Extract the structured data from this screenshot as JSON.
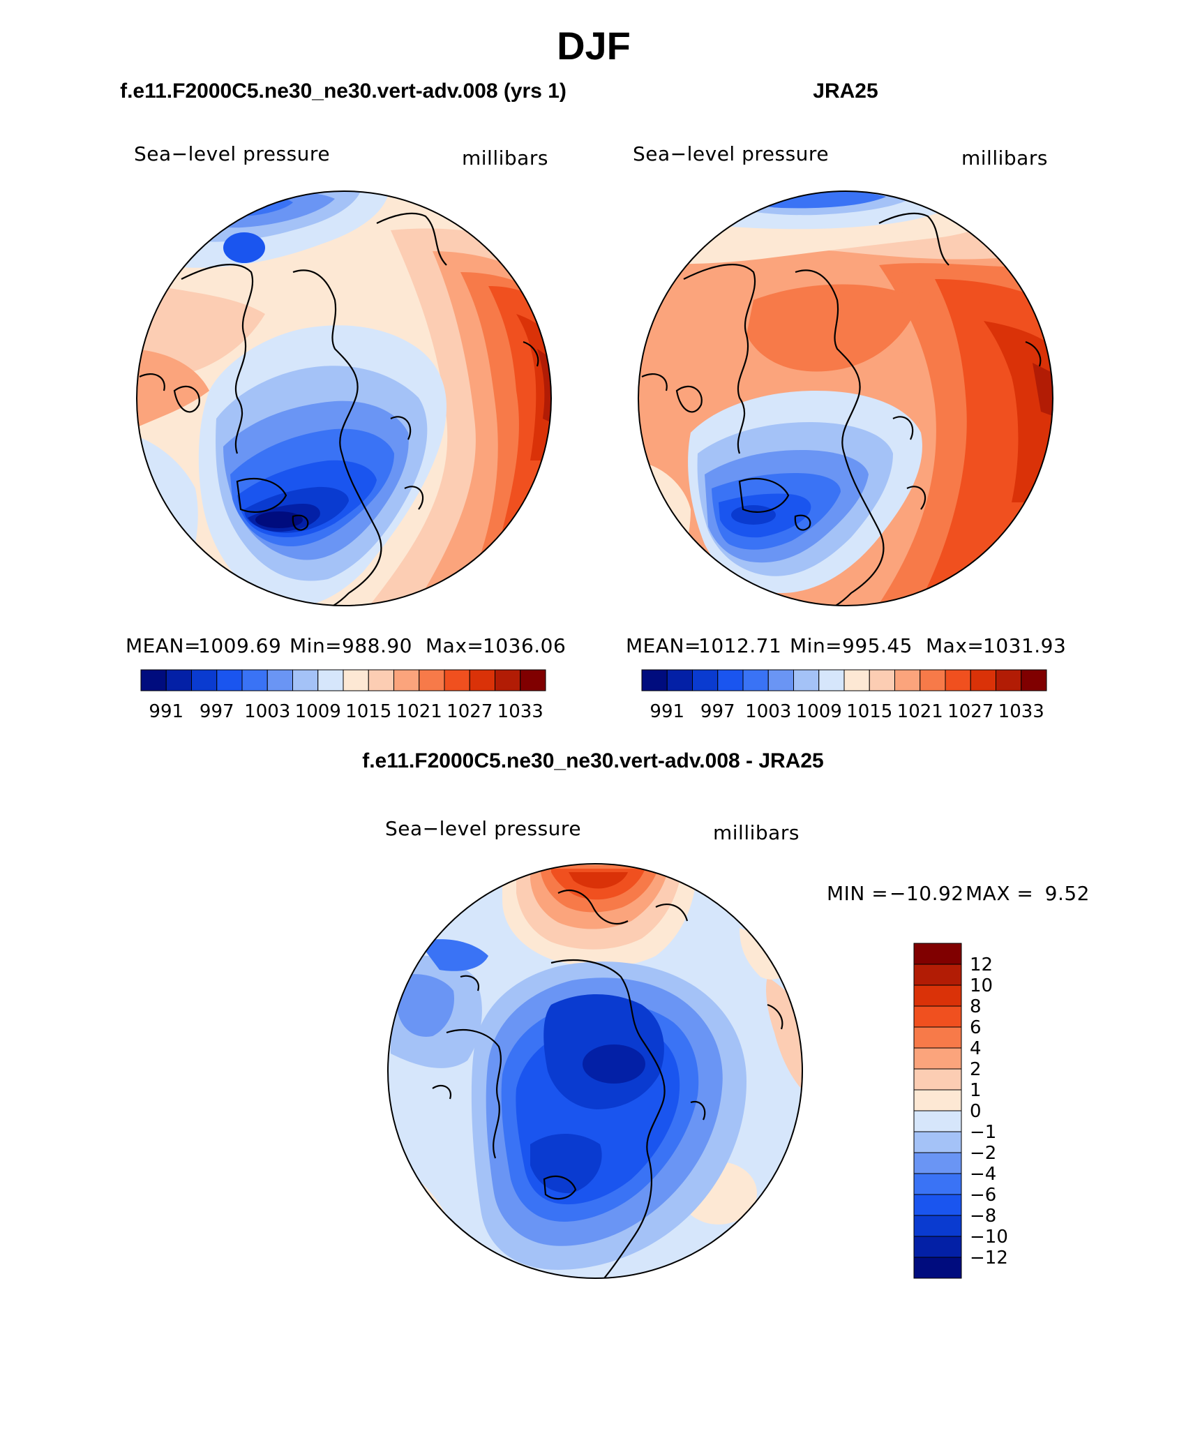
{
  "page": {
    "title": "DJF",
    "subtitle_left": "f.e11.F2000C5.ne30_ne30.vert-adv.008 (yrs 1)",
    "subtitle_right": "JRA25",
    "subtitle_diff": "f.e11.F2000C5.ne30_ne30.vert-adv.008 - JRA25"
  },
  "chart_data": [
    {
      "type": "heatmap",
      "projection": "north-polar-stereographic",
      "dataset": "model",
      "left_label": "Sea−level pressure",
      "right_label": "millibars",
      "stats": {
        "mean_label": "MEAN=",
        "mean": "1009.69",
        "min_label": "Min=",
        "min": "988.90",
        "max_label": "Max=",
        "max": "1036.06"
      },
      "colorbar_tick_labels": [
        "991",
        "997",
        "1003",
        "1009",
        "1015",
        "1021",
        "1027",
        "1033"
      ],
      "colorbar_levels": [
        991,
        994,
        997,
        1000,
        1003,
        1006,
        1009,
        1012,
        1015,
        1018,
        1021,
        1024,
        1027,
        1030,
        1033
      ],
      "colors": [
        "#000c7e",
        "#0320a6",
        "#0a3bd0",
        "#1a55ef",
        "#3a73f5",
        "#6a95f4",
        "#a4c2f7",
        "#d6e6fb",
        "#fde8d4",
        "#fccdb3",
        "#fba47c",
        "#f77a49",
        "#f0501f",
        "#da3208",
        "#b21c05",
        "#800000"
      ]
    },
    {
      "type": "heatmap",
      "projection": "north-polar-stereographic",
      "dataset": "JRA25",
      "left_label": "Sea−level pressure",
      "right_label": "millibars",
      "stats": {
        "mean_label": "MEAN=",
        "mean": "1012.71",
        "min_label": "Min=",
        "min": "995.45",
        "max_label": "Max=",
        "max": "1031.93"
      },
      "colorbar_tick_labels": [
        "991",
        "997",
        "1003",
        "1009",
        "1015",
        "1021",
        "1027",
        "1033"
      ],
      "colorbar_levels": [
        991,
        994,
        997,
        1000,
        1003,
        1006,
        1009,
        1012,
        1015,
        1018,
        1021,
        1024,
        1027,
        1030,
        1033
      ],
      "colors": [
        "#000c7e",
        "#0320a6",
        "#0a3bd0",
        "#1a55ef",
        "#3a73f5",
        "#6a95f4",
        "#a4c2f7",
        "#d6e6fb",
        "#fde8d4",
        "#fccdb3",
        "#fba47c",
        "#f77a49",
        "#f0501f",
        "#da3208",
        "#b21c05",
        "#800000"
      ]
    },
    {
      "type": "heatmap",
      "projection": "north-polar-stereographic",
      "dataset": "difference",
      "left_label": "Sea−level pressure",
      "right_label": "millibars",
      "stats": {
        "min_label": "MIN =",
        "min": "−10.92",
        "max_label": "MAX =",
        "max": "9.52"
      },
      "colorbar_tick_labels": [
        "12",
        "10",
        "8",
        "6",
        "4",
        "2",
        "1",
        "0",
        "−1",
        "−2",
        "−4",
        "−6",
        "−8",
        "−10",
        "−12"
      ],
      "colorbar_levels": [
        -12,
        -10,
        -8,
        -6,
        -4,
        -2,
        -1,
        0,
        1,
        2,
        4,
        6,
        8,
        10,
        12
      ],
      "colors": [
        "#000c7e",
        "#0320a6",
        "#0a3bd0",
        "#1a55ef",
        "#3a73f5",
        "#6a95f4",
        "#a4c2f7",
        "#d6e6fb",
        "#fde8d4",
        "#fccdb3",
        "#fba47c",
        "#f77a49",
        "#f0501f",
        "#da3208",
        "#b21c05",
        "#800000"
      ]
    }
  ]
}
